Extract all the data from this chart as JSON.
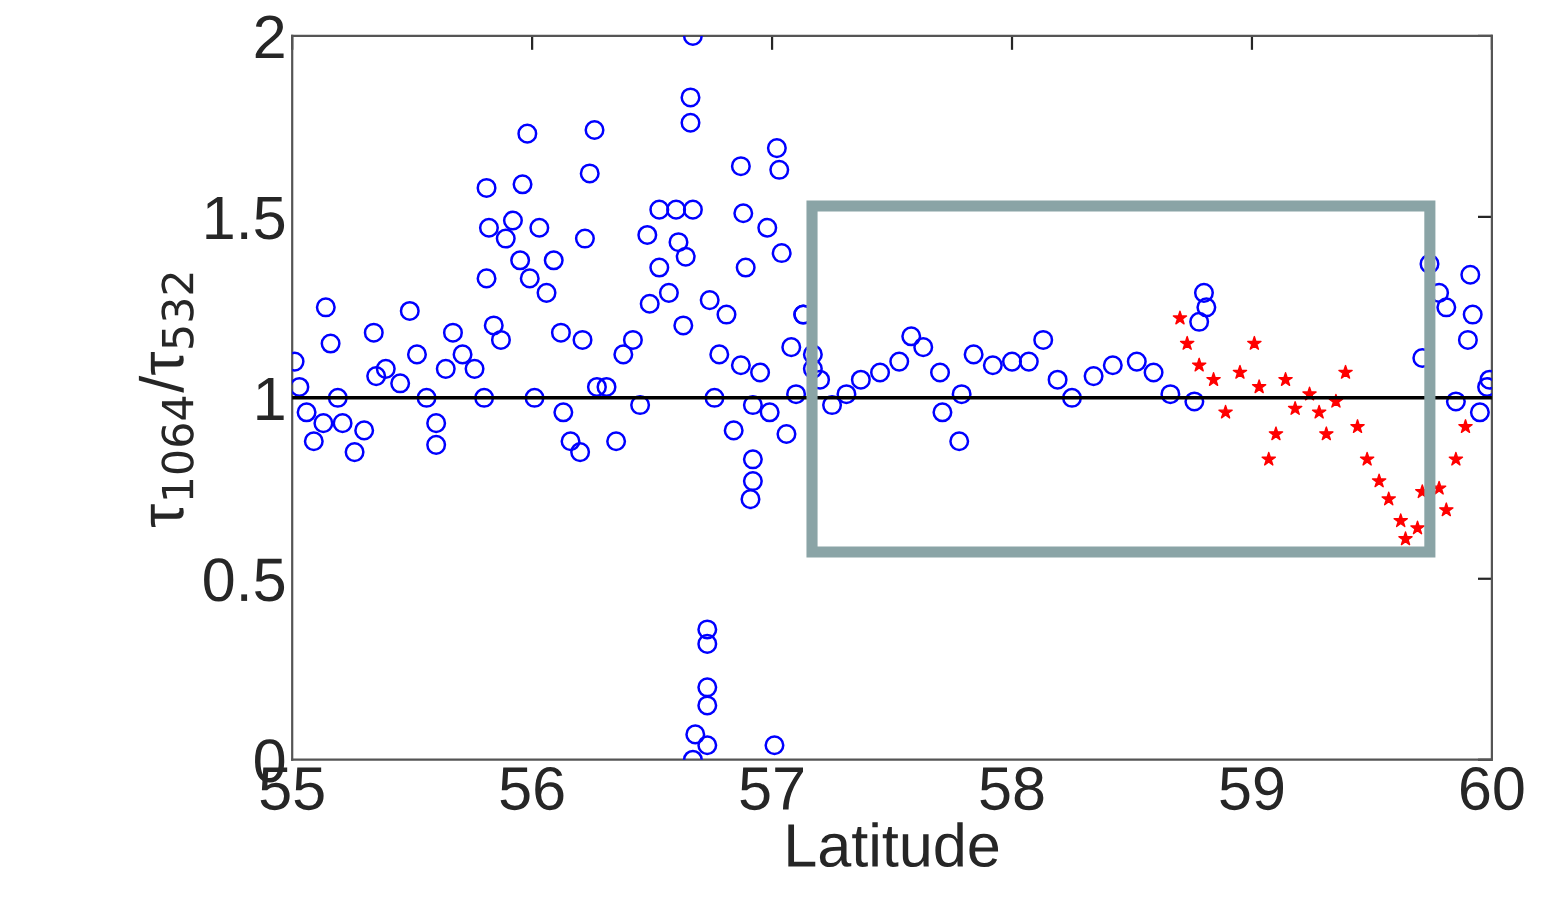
{
  "chart_data": {
    "type": "scatter",
    "xlabel": "Latitude",
    "ylabel": "τ$_{1064}$/τ$_{532}$",
    "xlim": [
      55,
      60
    ],
    "xticks": [
      55,
      56,
      57,
      58,
      59,
      60
    ],
    "ylim": [
      0,
      2
    ],
    "yticks": [
      0,
      {
        "value": 0.5,
        "label": "0.5"
      },
      1,
      {
        "value": 1.5,
        "label": "1.5"
      },
      2
    ],
    "grid": false,
    "legend": false,
    "ref_lines": [
      {
        "axis": "y",
        "value": 1,
        "color": "#000000"
      }
    ],
    "series": [
      {
        "color": "#0000ff",
        "marker": "circle",
        "x": [
          55.01,
          55.03,
          55.06,
          55.09,
          55.13,
          55.14,
          55.16,
          55.19,
          55.21,
          55.26,
          55.3,
          55.34,
          55.35,
          55.39,
          55.45,
          55.49,
          55.52,
          55.56,
          55.6,
          55.6,
          55.64,
          55.67,
          55.71,
          55.76,
          55.8,
          55.81,
          55.82,
          55.81,
          55.84,
          55.87,
          55.89,
          55.92,
          55.95,
          55.96,
          55.98,
          55.99,
          56.01,
          56.03,
          56.06,
          56.09,
          56.12,
          56.13,
          56.16,
          56.2,
          56.21,
          56.22,
          56.24,
          56.26,
          56.27,
          56.31,
          56.35,
          56.38,
          56.42,
          56.45,
          56.48,
          56.49,
          56.53,
          56.53,
          56.57,
          56.6,
          56.61,
          56.63,
          56.64,
          56.66,
          56.66,
          56.67,
          56.67,
          56.67,
          56.68,
          56.73,
          56.73,
          56.73,
          56.73,
          56.73,
          56.74,
          56.76,
          56.78,
          56.81,
          56.84,
          56.87,
          56.87,
          56.88,
          56.89,
          56.91,
          56.92,
          56.92,
          56.92,
          56.95,
          56.98,
          56.99,
          57.01,
          57.02,
          57.03,
          57.04,
          57.06,
          57.08,
          57.1,
          57.13,
          57.17,
          57.13,
          57.17,
          57.2,
          57.25,
          57.31,
          57.37,
          57.45,
          57.53,
          57.58,
          57.63,
          57.7,
          57.71,
          57.78,
          57.79,
          57.84,
          57.92,
          58.0,
          58.07,
          58.13,
          58.19,
          58.25,
          58.34,
          58.42,
          58.52,
          58.59,
          58.66,
          58.76,
          58.78,
          58.8,
          58.81,
          59.71,
          59.74,
          59.78,
          59.81,
          59.85,
          59.9,
          59.91,
          59.92,
          59.95,
          59.98,
          59.99
        ],
        "values": [
          1.1,
          1.03,
          0.96,
          0.88,
          0.93,
          1.25,
          1.15,
          1.0,
          0.93,
          0.85,
          0.91,
          1.18,
          1.06,
          1.08,
          1.04,
          1.24,
          1.12,
          1.0,
          0.93,
          0.87,
          1.08,
          1.18,
          1.12,
          1.08,
          1.0,
          1.58,
          1.47,
          1.33,
          1.2,
          1.16,
          1.44,
          1.49,
          1.38,
          1.59,
          1.73,
          1.33,
          1.0,
          1.47,
          1.29,
          1.38,
          1.18,
          0.96,
          0.88,
          0.85,
          1.16,
          1.44,
          1.62,
          1.74,
          1.03,
          1.03,
          0.88,
          1.12,
          1.16,
          0.98,
          1.45,
          1.26,
          1.52,
          1.36,
          1.29,
          1.52,
          1.43,
          1.2,
          1.39,
          1.83,
          1.76,
          2.0,
          1.52,
          0.0,
          0.07,
          0.04,
          0.15,
          0.2,
          0.32,
          0.36,
          1.27,
          1.0,
          1.12,
          1.23,
          0.91,
          1.64,
          1.09,
          1.51,
          1.36,
          0.72,
          0.77,
          0.83,
          0.98,
          1.07,
          1.47,
          0.96,
          0.04,
          1.69,
          1.63,
          1.4,
          0.9,
          1.14,
          1.01,
          1.23,
          1.08,
          1.23,
          1.12,
          1.05,
          0.98,
          1.01,
          1.05,
          1.07,
          1.1,
          1.17,
          1.14,
          1.07,
          0.96,
          0.88,
          1.01,
          1.12,
          1.09,
          1.1,
          1.1,
          1.16,
          1.05,
          1.0,
          1.06,
          1.09,
          1.1,
          1.07,
          1.01,
          0.99,
          1.21,
          1.29,
          1.25,
          1.11,
          1.37,
          1.29,
          1.25,
          0.99,
          1.16,
          1.34,
          1.23,
          0.96,
          1.03,
          1.05
        ]
      },
      {
        "color": "#ff0000",
        "marker": "star",
        "x": [
          58.7,
          58.73,
          58.78,
          58.84,
          58.89,
          58.95,
          59.01,
          59.03,
          59.07,
          59.1,
          59.14,
          59.18,
          59.24,
          59.28,
          59.31,
          59.35,
          59.39,
          59.44,
          59.48,
          59.53,
          59.57,
          59.62,
          59.64,
          59.69,
          59.71,
          59.78,
          59.81,
          59.85,
          59.89
        ],
        "values": [
          1.22,
          1.15,
          1.09,
          1.05,
          0.96,
          1.07,
          1.15,
          1.03,
          0.83,
          0.9,
          1.05,
          0.97,
          1.01,
          0.96,
          0.9,
          0.99,
          1.07,
          0.92,
          0.83,
          0.77,
          0.72,
          0.66,
          0.61,
          0.64,
          0.74,
          0.75,
          0.69,
          0.83,
          0.92
        ]
      }
    ]
  }
}
